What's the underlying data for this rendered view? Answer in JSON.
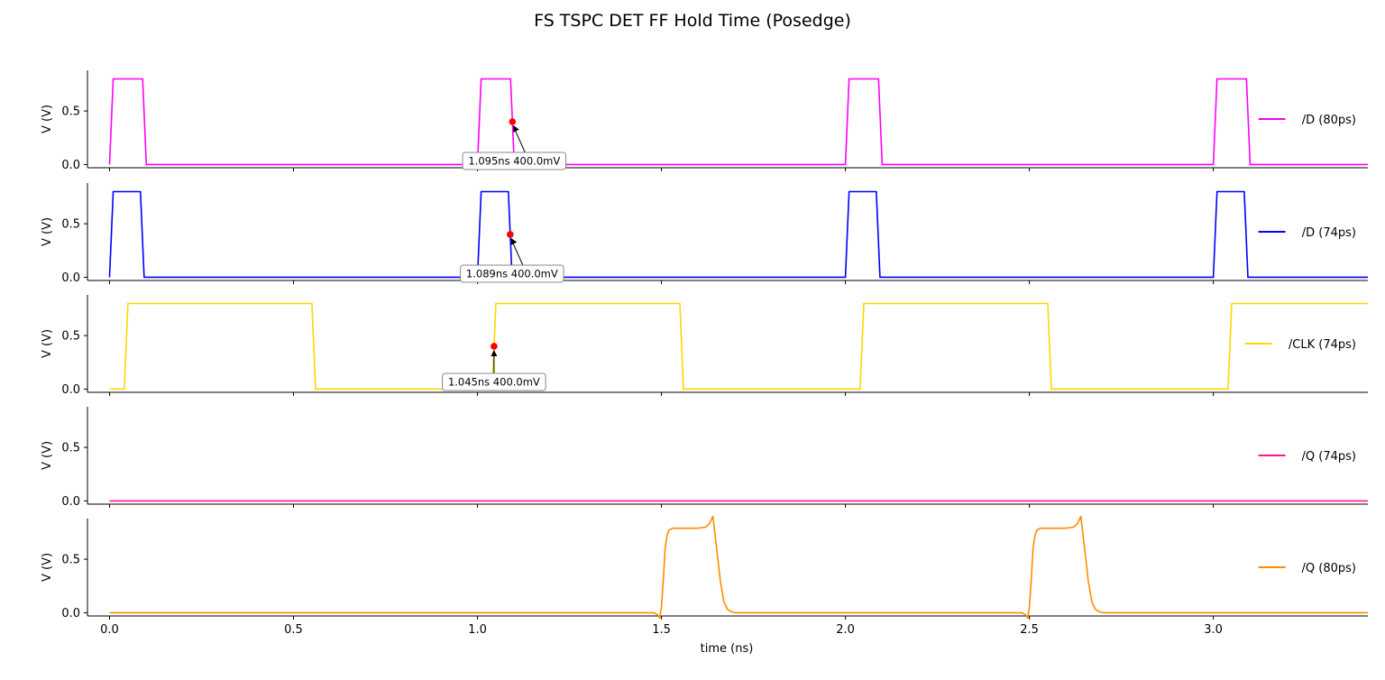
{
  "chart_data": {
    "type": "line",
    "title": "FS TSPC DET FF Hold Time (Posedge)",
    "xlabel": "time (ns)",
    "xlim": [
      -0.06,
      3.42
    ],
    "xticks": [
      "0.0",
      "0.5",
      "1.0",
      "1.5",
      "2.0",
      "2.5",
      "3.0"
    ],
    "xtick_values": [
      0.0,
      0.5,
      1.0,
      1.5,
      2.0,
      2.5,
      3.0
    ],
    "ylabel": "V (V)",
    "ylim": [
      -0.03,
      0.88
    ],
    "yticks": [
      "0.0",
      "0.5"
    ],
    "ytick_values": [
      0.0,
      0.5
    ],
    "grid": false,
    "legend_position": "right",
    "panels": [
      {
        "name": "/D (80ps)",
        "color": "#ff00ff",
        "x": [
          0.0,
          0.01,
          0.09,
          0.1,
          3.42
        ],
        "y": [
          0.0,
          0.8,
          0.8,
          0.0,
          0.0
        ],
        "period": 1.0,
        "annotation": {
          "x": 1.095,
          "y": 0.4,
          "label": "1.095ns 400.0mV"
        }
      },
      {
        "name": "/D (74ps)",
        "color": "#0000ff",
        "x": [
          0.0,
          0.01,
          0.084,
          0.094,
          3.42
        ],
        "y": [
          0.0,
          0.8,
          0.8,
          0.0,
          0.0
        ],
        "period": 1.0,
        "annotation": {
          "x": 1.089,
          "y": 0.4,
          "label": "1.089ns 400.0mV"
        }
      },
      {
        "name": "/CLK (74ps)",
        "color": "#ffd700",
        "x": [
          0.0,
          0.04,
          0.05,
          0.55,
          0.56,
          1.04,
          1.05,
          1.55,
          1.56,
          2.04,
          2.05,
          2.55,
          2.56,
          3.04,
          3.05,
          3.42
        ],
        "y": [
          0.0,
          0.0,
          0.8,
          0.8,
          0.0,
          0.0,
          0.8,
          0.8,
          0.0,
          0.0,
          0.8,
          0.8,
          0.0,
          0.0,
          0.8,
          0.8
        ],
        "annotation": {
          "x": 1.045,
          "y": 0.4,
          "label": "1.045ns 400.0mV"
        }
      },
      {
        "name": "/Q (74ps)",
        "color": "#ff1493",
        "x": [
          0.0,
          3.42
        ],
        "y": [
          0.0,
          0.0
        ]
      },
      {
        "name": "/Q (80ps)",
        "color": "#ff8c00",
        "x": [
          0.0,
          1.48,
          1.49,
          1.495,
          1.5,
          1.505,
          1.51,
          1.515,
          1.52,
          1.53,
          1.6,
          1.62,
          1.63,
          1.64,
          1.65,
          1.66,
          1.67,
          1.68,
          1.69,
          1.7,
          3.42
        ],
        "y": [
          0.0,
          0.0,
          -0.02,
          -0.05,
          0.05,
          0.3,
          0.6,
          0.72,
          0.77,
          0.79,
          0.79,
          0.8,
          0.83,
          0.9,
          0.6,
          0.3,
          0.1,
          0.03,
          0.01,
          0.0,
          0.0
        ],
        "period": 1.0,
        "repeat": 2
      }
    ]
  }
}
